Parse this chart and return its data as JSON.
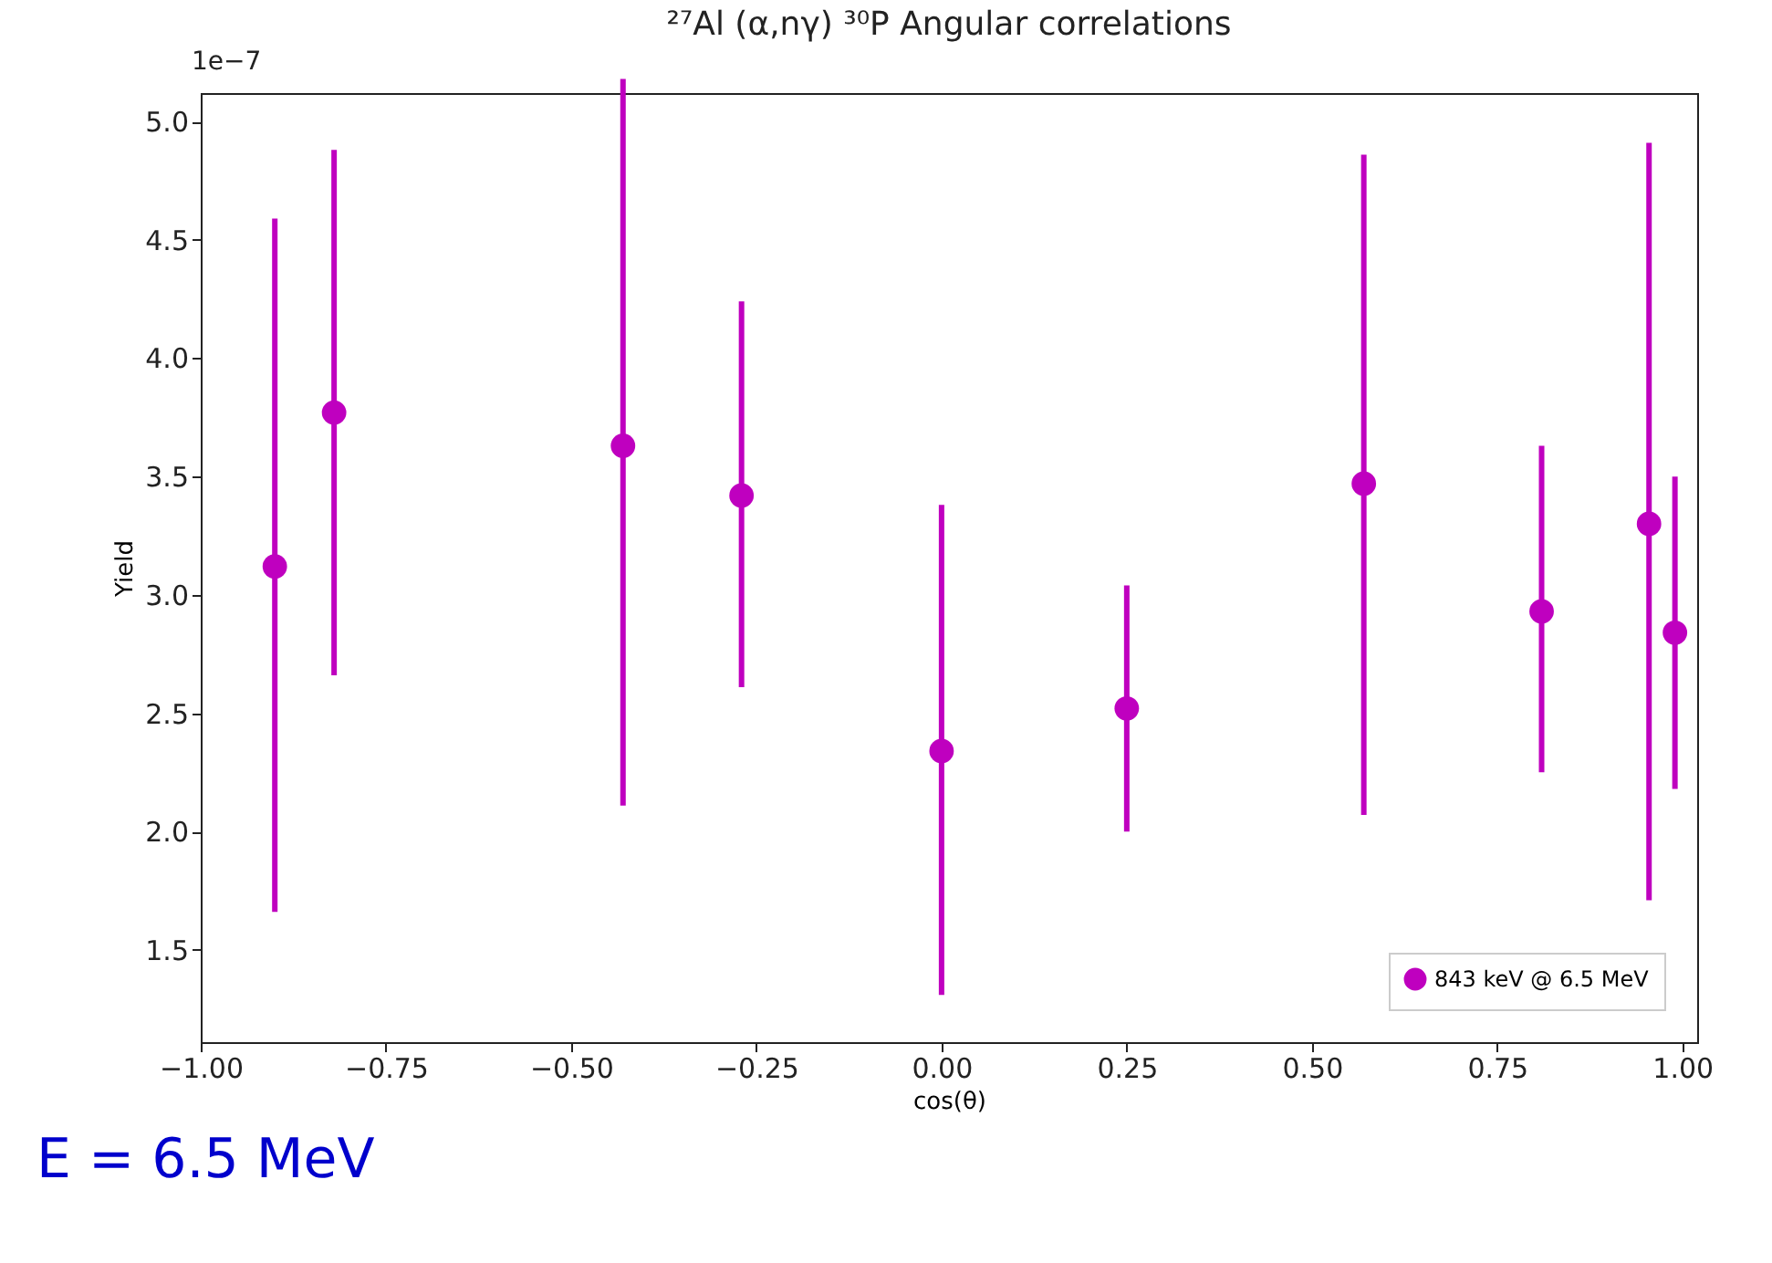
{
  "chart_data": {
    "type": "scatter",
    "title": "²⁷Al (α,nγ) ³⁰P Angular correlations",
    "xlabel": "cos(θ)",
    "ylabel": "Yield",
    "annotations": [
      "1e−7",
      "E = 6.5 MeV"
    ],
    "x": [
      -0.9,
      -0.82,
      -0.43,
      -0.27,
      0.0,
      0.25,
      0.57,
      0.81,
      0.955,
      0.99
    ],
    "series": [
      {
        "name": "843 keV @ 6.5 MeV",
        "color": "#bf00bf",
        "values": [
          3.12,
          3.77,
          3.63,
          3.42,
          2.34,
          2.52,
          3.47,
          2.93,
          3.3,
          2.84
        ],
        "errors": [
          [
            1.66,
            4.59
          ],
          [
            2.66,
            4.88
          ],
          [
            2.11,
            5.18
          ],
          [
            2.61,
            4.24
          ],
          [
            1.31,
            3.38
          ],
          [
            2.0,
            3.04
          ],
          [
            2.07,
            4.86
          ],
          [
            2.25,
            3.63
          ],
          [
            1.71,
            4.91
          ],
          [
            2.18,
            3.5
          ]
        ]
      }
    ],
    "xlim": [
      -1.0,
      1.02
    ],
    "ylim": [
      1.11,
      5.12
    ],
    "xticks": [
      {
        "value": -1.0,
        "label": "−1.00"
      },
      {
        "value": -0.75,
        "label": "−0.75"
      },
      {
        "value": -0.5,
        "label": "−0.50"
      },
      {
        "value": -0.25,
        "label": "−0.25"
      },
      {
        "value": 0.0,
        "label": "0.00"
      },
      {
        "value": 0.25,
        "label": "0.25"
      },
      {
        "value": 0.5,
        "label": "0.50"
      },
      {
        "value": 0.75,
        "label": "0.75"
      },
      {
        "value": 1.0,
        "label": "1.00"
      }
    ],
    "yticks": [
      {
        "value": 1.5,
        "label": "1.5"
      },
      {
        "value": 2.0,
        "label": "2.0"
      },
      {
        "value": 2.5,
        "label": "2.5"
      },
      {
        "value": 3.0,
        "label": "3.0"
      },
      {
        "value": 3.5,
        "label": "3.5"
      },
      {
        "value": 4.0,
        "label": "4.0"
      },
      {
        "value": 4.5,
        "label": "4.5"
      },
      {
        "value": 5.0,
        "label": "5.0"
      }
    ],
    "marker": "circle",
    "legend": "bottom right",
    "grid": false
  }
}
